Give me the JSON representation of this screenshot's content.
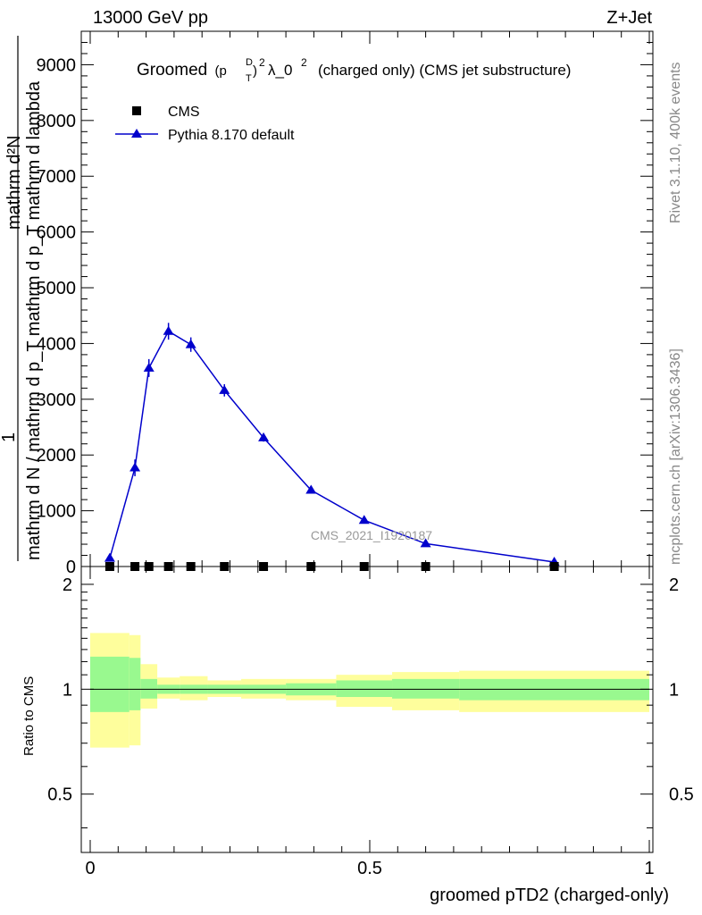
{
  "header": {
    "left": "13000 GeV pp",
    "right": "Z+Jet"
  },
  "side_labels": {
    "rivet": "Rivet 3.1.10,  400k events",
    "mcplots": "mcplots.cern.ch [arXiv:1306.3436]"
  },
  "chart_data": [
    {
      "type": "line",
      "title_prefix": "Groomed",
      "title_pt": "(p",
      "title_sup_D": "D",
      "title_sub_T": "T",
      "title_close": ")",
      "title_sup_2": "2",
      "title_lambda": "λ_0",
      "title_sup_2b": "2",
      "title_suffix": "(charged only) (CMS jet substructure)",
      "ylabel_numerator": "1",
      "ylabel_denominator": "mathrm d N / mathrm d p_T mathrm d p_T mathrm d lambda",
      "ylabel_over": "mathrm d²N",
      "ylim": [
        0,
        9600
      ],
      "yticks": [
        0,
        1000,
        2000,
        3000,
        4000,
        5000,
        6000,
        7000,
        8000,
        9000
      ],
      "ytick_labels": [
        "0",
        "1000",
        "2000",
        "3000",
        "4000",
        "5000",
        "6000",
        "7000",
        "8000",
        "9000"
      ],
      "xlim": [
        0,
        1
      ],
      "watermark": "CMS_2021_I1920187",
      "legend": [
        {
          "name": "CMS",
          "marker": "square",
          "color": "#000000"
        },
        {
          "name": "Pythia 8.170 default",
          "marker": "triangle",
          "color": "#0000cc"
        }
      ],
      "series": [
        {
          "name": "CMS",
          "x": [
            0.035,
            0.08,
            0.105,
            0.14,
            0.18,
            0.24,
            0.31,
            0.395,
            0.49,
            0.6,
            0.83
          ],
          "values": [
            0,
            0,
            0,
            0,
            0,
            0,
            0,
            0,
            0,
            0,
            0
          ]
        },
        {
          "name": "Pythia 8.170 default",
          "x": [
            0.035,
            0.08,
            0.105,
            0.14,
            0.18,
            0.24,
            0.31,
            0.395,
            0.49,
            0.6,
            0.83
          ],
          "values": [
            150,
            1770,
            3560,
            4220,
            3980,
            3160,
            2310,
            1370,
            830,
            410,
            80
          ],
          "errors": [
            40,
            150,
            160,
            150,
            130,
            110,
            70,
            45,
            30,
            20,
            10
          ]
        }
      ]
    },
    {
      "type": "area",
      "ylabel": "Ratio to CMS",
      "xlabel": "groomed pTD2 (charged-only)",
      "ylim": [
        0.34,
        2.25
      ],
      "xlim": [
        0,
        1
      ],
      "yticks": [
        0.5,
        1,
        2
      ],
      "ytick_labels": [
        "0.5",
        "1",
        "2"
      ],
      "xticks": [
        0,
        0.5,
        1
      ],
      "xtick_labels": [
        "0",
        "0.5",
        "1"
      ],
      "bins": [
        {
          "lo": 0.0,
          "hi": 0.07,
          "g": [
            0.86,
            1.24
          ],
          "y": [
            0.68,
            1.45
          ]
        },
        {
          "lo": 0.07,
          "hi": 0.09,
          "g": [
            0.87,
            1.23
          ],
          "y": [
            0.69,
            1.43
          ]
        },
        {
          "lo": 0.09,
          "hi": 0.12,
          "g": [
            0.94,
            1.07
          ],
          "y": [
            0.88,
            1.18
          ]
        },
        {
          "lo": 0.12,
          "hi": 0.16,
          "g": [
            0.97,
            1.03
          ],
          "y": [
            0.94,
            1.08
          ]
        },
        {
          "lo": 0.16,
          "hi": 0.21,
          "g": [
            0.97,
            1.03
          ],
          "y": [
            0.93,
            1.09
          ]
        },
        {
          "lo": 0.21,
          "hi": 0.27,
          "g": [
            0.97,
            1.03
          ],
          "y": [
            0.95,
            1.06
          ]
        },
        {
          "lo": 0.27,
          "hi": 0.35,
          "g": [
            0.97,
            1.03
          ],
          "y": [
            0.94,
            1.07
          ]
        },
        {
          "lo": 0.35,
          "hi": 0.44,
          "g": [
            0.96,
            1.04
          ],
          "y": [
            0.93,
            1.07
          ]
        },
        {
          "lo": 0.44,
          "hi": 0.54,
          "g": [
            0.95,
            1.06
          ],
          "y": [
            0.89,
            1.1
          ]
        },
        {
          "lo": 0.54,
          "hi": 0.66,
          "g": [
            0.94,
            1.07
          ],
          "y": [
            0.87,
            1.12
          ]
        },
        {
          "lo": 0.66,
          "hi": 1.0,
          "g": [
            0.93,
            1.07
          ],
          "y": [
            0.86,
            1.13
          ]
        }
      ],
      "ratio_line": 1,
      "colors": {
        "green": "#99f98f",
        "yellow": "#fefe9c"
      }
    }
  ]
}
